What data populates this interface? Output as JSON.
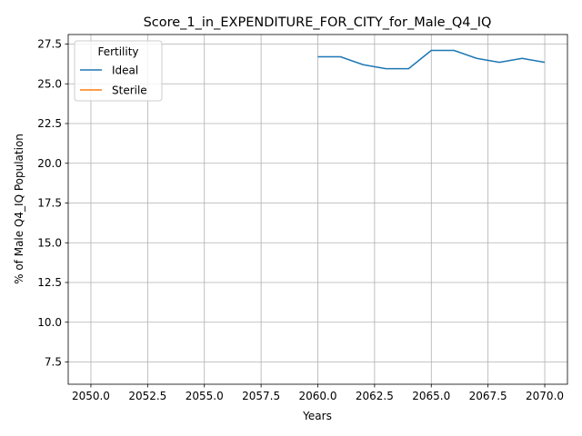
{
  "chart_data": {
    "type": "line",
    "title": "Score_1_in_EXPENDITURE_FOR_CITY_for_Male_Q4_IQ",
    "xlabel": "Years",
    "ylabel": "% of Male Q4_IQ Population",
    "xlim": [
      2049.0,
      2071.0
    ],
    "ylim": [
      6.1,
      28.1
    ],
    "xticks": [
      "2050.0",
      "2052.5",
      "2055.0",
      "2057.5",
      "2060.0",
      "2062.5",
      "2065.0",
      "2067.5",
      "2070.0"
    ],
    "yticks": [
      "7.5",
      "10.0",
      "12.5",
      "15.0",
      "17.5",
      "20.0",
      "22.5",
      "25.0",
      "27.5"
    ],
    "grid": true,
    "legend": {
      "title": "Fertility",
      "placement": "upper-left"
    },
    "series": [
      {
        "name": "Ideal",
        "color": "#1f77b4",
        "x": [
          2060,
          2061,
          2062,
          2063,
          2064,
          2065,
          2066,
          2067,
          2068,
          2069,
          2070
        ],
        "values": [
          26.7,
          26.7,
          26.2,
          25.95,
          25.95,
          27.1,
          27.1,
          26.6,
          26.35,
          26.6,
          26.35
        ]
      },
      {
        "name": "Sterile",
        "color": "#ff7f0e",
        "x": [],
        "values": []
      }
    ]
  }
}
